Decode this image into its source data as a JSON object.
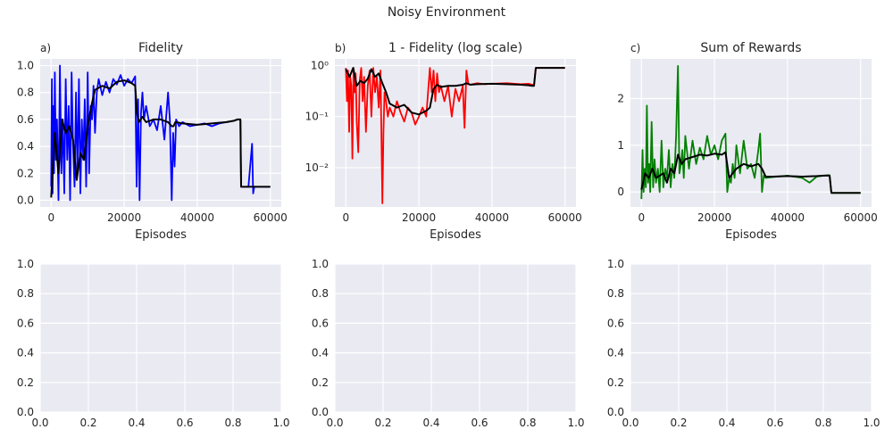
{
  "figure": {
    "suptitle": "Noisy Environment"
  },
  "chart_data": [
    {
      "type": "line",
      "panel_label": "a)",
      "title": "Fidelity",
      "xlabel": "Episodes",
      "ylabel": "",
      "yscale": "linear",
      "xlim": [
        -3000,
        63000
      ],
      "ylim": [
        -0.05,
        1.05
      ],
      "xticks": [
        0,
        20000,
        40000,
        60000
      ],
      "xtick_labels": [
        "0",
        "20000",
        "40000",
        "60000"
      ],
      "yticks": [
        0.0,
        0.2,
        0.4,
        0.6,
        0.8,
        1.0
      ],
      "ytick_labels": [
        "0.0",
        "0.2",
        "0.4",
        "0.6",
        "0.8",
        "1.0"
      ],
      "grid": true,
      "series": [
        {
          "role": "raw",
          "color": "#0000ff",
          "x": [
            0,
            200,
            400,
            600,
            800,
            1000,
            1300,
            1600,
            2000,
            2400,
            2800,
            3200,
            3600,
            4000,
            4400,
            4800,
            5200,
            5600,
            6000,
            6400,
            6800,
            7200,
            7600,
            8000,
            8400,
            8800,
            9200,
            9600,
            10000,
            10400,
            10800,
            11200,
            11600,
            12000,
            12500,
            13000,
            14000,
            15000,
            16000,
            17000,
            18000,
            19000,
            20000,
            21000,
            22000,
            23000,
            23400,
            23800,
            24200,
            24600,
            25000,
            25400,
            26000,
            27000,
            28000,
            29000,
            30000,
            31000,
            32000,
            32500,
            33000,
            33400,
            33800,
            34200,
            35000,
            36000,
            38000,
            40000,
            42000,
            44000,
            46000,
            48000,
            50000,
            51000,
            51800,
            52000,
            53000,
            54000,
            55000,
            55300,
            55600,
            56000,
            58000,
            60000
          ],
          "y": [
            0.1,
            0.9,
            0.05,
            0.7,
            0.2,
            0.95,
            0.3,
            0.6,
            0.0,
            1.0,
            0.2,
            0.6,
            0.05,
            0.9,
            0.3,
            0.7,
            0.0,
            0.95,
            0.4,
            0.1,
            0.8,
            0.2,
            0.9,
            0.05,
            0.6,
            0.3,
            0.75,
            0.1,
            0.95,
            0.2,
            0.7,
            0.6,
            0.85,
            0.5,
            0.8,
            0.9,
            0.78,
            0.88,
            0.8,
            0.9,
            0.86,
            0.93,
            0.85,
            0.9,
            0.87,
            0.92,
            0.1,
            0.75,
            0.0,
            0.65,
            0.8,
            0.6,
            0.7,
            0.55,
            0.6,
            0.52,
            0.7,
            0.45,
            0.8,
            0.6,
            0.0,
            0.5,
            0.25,
            0.6,
            0.55,
            0.58,
            0.55,
            0.56,
            0.57,
            0.55,
            0.57,
            0.58,
            0.59,
            0.6,
            0.6,
            0.1,
            0.1,
            0.1,
            0.42,
            0.05,
            0.1,
            0.1,
            0.1,
            0.1
          ]
        },
        {
          "role": "smoothed",
          "color": "#000000",
          "x": [
            0,
            1000,
            2000,
            3000,
            4000,
            5000,
            6000,
            7000,
            8000,
            9000,
            10000,
            11000,
            12000,
            14000,
            16000,
            18000,
            20000,
            22000,
            23000,
            23500,
            24000,
            25000,
            26000,
            28000,
            30000,
            32000,
            33000,
            33500,
            34000,
            36000,
            40000,
            44000,
            48000,
            50000,
            51000,
            51800,
            52000,
            56000,
            60000
          ],
          "y": [
            0.02,
            0.5,
            0.2,
            0.6,
            0.5,
            0.55,
            0.45,
            0.15,
            0.35,
            0.3,
            0.55,
            0.7,
            0.82,
            0.85,
            0.83,
            0.88,
            0.89,
            0.87,
            0.85,
            0.65,
            0.58,
            0.62,
            0.58,
            0.6,
            0.6,
            0.58,
            0.55,
            0.55,
            0.58,
            0.57,
            0.56,
            0.57,
            0.58,
            0.59,
            0.6,
            0.6,
            0.1,
            0.1,
            0.1
          ]
        }
      ]
    },
    {
      "type": "line",
      "panel_label": "b)",
      "title": "1 - Fidelity (log scale)",
      "xlabel": "Episodes",
      "ylabel": "",
      "yscale": "log",
      "xlim": [
        -3000,
        63000
      ],
      "ylim": [
        0.0017,
        1.35
      ],
      "xticks": [
        0,
        20000,
        40000,
        60000
      ],
      "xtick_labels": [
        "0",
        "20000",
        "40000",
        "60000"
      ],
      "yticks": [
        0.01,
        0.1,
        1
      ],
      "ytick_labels": [
        "10⁻²",
        "10⁻¹",
        "10⁰"
      ],
      "grid": true,
      "series": [
        {
          "role": "raw",
          "color": "#ff0000",
          "x": [
            0,
            300,
            600,
            900,
            1200,
            1500,
            1800,
            2100,
            2400,
            2700,
            3000,
            3400,
            3800,
            4200,
            4600,
            5000,
            5500,
            6000,
            6500,
            7000,
            7500,
            8000,
            8500,
            9000,
            9500,
            10000,
            10300,
            10600,
            11000,
            11500,
            12000,
            13000,
            14000,
            15000,
            16000,
            17000,
            18000,
            19000,
            20000,
            21000,
            22000,
            23000,
            23500,
            24000,
            24500,
            25000,
            25500,
            26000,
            27000,
            28000,
            29000,
            30000,
            31000,
            32000,
            32500,
            33000,
            33500,
            34000,
            36000,
            38000,
            40000,
            44000,
            48000,
            50000,
            51000,
            51500,
            52000,
            56000,
            60000
          ],
          "y": [
            0.9,
            0.2,
            0.8,
            0.05,
            0.6,
            0.4,
            0.015,
            0.9,
            0.3,
            0.7,
            0.08,
            0.02,
            0.5,
            0.9,
            0.2,
            0.6,
            0.05,
            0.4,
            0.8,
            0.1,
            0.9,
            0.3,
            0.6,
            0.15,
            0.8,
            0.002,
            0.05,
            0.3,
            0.2,
            0.1,
            0.15,
            0.1,
            0.2,
            0.12,
            0.08,
            0.15,
            0.12,
            0.07,
            0.1,
            0.15,
            0.1,
            0.9,
            0.3,
            0.8,
            0.2,
            0.7,
            0.3,
            0.4,
            0.2,
            0.4,
            0.1,
            0.35,
            0.2,
            0.4,
            0.06,
            0.8,
            0.45,
            0.42,
            0.45,
            0.43,
            0.44,
            0.45,
            0.43,
            0.44,
            0.42,
            0.42,
            0.9,
            0.9,
            0.9
          ]
        },
        {
          "role": "smoothed",
          "color": "#000000",
          "x": [
            0,
            1000,
            2000,
            3000,
            4000,
            5000,
            6000,
            7000,
            8000,
            9000,
            10000,
            11000,
            12000,
            14000,
            16000,
            18000,
            20000,
            22000,
            23000,
            24000,
            25000,
            26000,
            28000,
            30000,
            32000,
            33000,
            34000,
            36000,
            40000,
            44000,
            48000,
            50000,
            51000,
            51500,
            52000,
            56000,
            60000
          ],
          "y": [
            0.85,
            0.6,
            0.9,
            0.4,
            0.5,
            0.45,
            0.55,
            0.85,
            0.6,
            0.7,
            0.45,
            0.3,
            0.18,
            0.15,
            0.17,
            0.12,
            0.11,
            0.13,
            0.15,
            0.35,
            0.42,
            0.38,
            0.4,
            0.4,
            0.42,
            0.45,
            0.42,
            0.43,
            0.44,
            0.43,
            0.42,
            0.41,
            0.4,
            0.4,
            0.9,
            0.9,
            0.9
          ]
        }
      ]
    },
    {
      "type": "line",
      "panel_label": "c)",
      "title": "Sum of Rewards",
      "xlabel": "Episodes",
      "ylabel": "",
      "yscale": "linear",
      "xlim": [
        -3000,
        63000
      ],
      "ylim": [
        -0.32,
        2.85
      ],
      "xticks": [
        0,
        20000,
        40000,
        60000
      ],
      "xtick_labels": [
        "0",
        "20000",
        "40000",
        "60000"
      ],
      "yticks": [
        0,
        1,
        2
      ],
      "ytick_labels": [
        "0",
        "1",
        "2"
      ],
      "grid": true,
      "series": [
        {
          "role": "raw",
          "color": "#008000",
          "x": [
            0,
            300,
            600,
            900,
            1200,
            1500,
            1800,
            2100,
            2400,
            2800,
            3200,
            3600,
            4000,
            4500,
            5000,
            5500,
            6000,
            6500,
            7000,
            7500,
            8000,
            8500,
            9000,
            9500,
            10000,
            10400,
            10800,
            11200,
            11600,
            12000,
            13000,
            14000,
            15000,
            16000,
            17000,
            18000,
            19000,
            20000,
            21000,
            22000,
            23000,
            23500,
            24000,
            24500,
            25000,
            25500,
            26000,
            27000,
            28000,
            29000,
            30000,
            31000,
            32000,
            32500,
            33000,
            33500,
            34000,
            36000,
            40000,
            44000,
            46000,
            48000,
            50000,
            51000,
            51500,
            52000,
            56000,
            60000
          ],
          "y": [
            -0.15,
            0.9,
            0.0,
            0.5,
            0.1,
            1.85,
            0.2,
            0.6,
            0.0,
            1.5,
            0.1,
            0.7,
            0.2,
            0.5,
            0.0,
            1.1,
            0.1,
            0.5,
            0.3,
            0.9,
            0.1,
            0.6,
            0.3,
            1.2,
            2.7,
            0.4,
            0.6,
            0.9,
            0.3,
            1.2,
            0.5,
            1.1,
            0.6,
            0.95,
            0.7,
            1.2,
            0.8,
            1.0,
            0.7,
            1.1,
            1.25,
            0.0,
            0.3,
            0.2,
            0.6,
            0.3,
            1.0,
            0.4,
            1.1,
            0.5,
            0.6,
            0.3,
            0.9,
            1.25,
            0.0,
            0.35,
            0.3,
            0.32,
            0.35,
            0.3,
            0.2,
            0.33,
            0.35,
            0.36,
            0.36,
            -0.02,
            -0.02,
            -0.02
          ]
        },
        {
          "role": "smoothed",
          "color": "#000000",
          "x": [
            0,
            1000,
            2000,
            3000,
            4000,
            5000,
            6000,
            7000,
            8000,
            9000,
            10000,
            11000,
            12000,
            14000,
            16000,
            18000,
            20000,
            22000,
            23000,
            24000,
            25000,
            26000,
            28000,
            30000,
            32000,
            33000,
            34000,
            36000,
            40000,
            44000,
            48000,
            50000,
            51000,
            51500,
            52000,
            56000,
            60000
          ],
          "y": [
            0.05,
            0.4,
            0.3,
            0.5,
            0.3,
            0.35,
            0.4,
            0.2,
            0.5,
            0.4,
            0.8,
            0.6,
            0.7,
            0.75,
            0.8,
            0.78,
            0.82,
            0.8,
            0.85,
            0.3,
            0.4,
            0.5,
            0.6,
            0.55,
            0.6,
            0.5,
            0.33,
            0.33,
            0.34,
            0.33,
            0.34,
            0.35,
            0.35,
            0.35,
            -0.02,
            -0.02,
            -0.02
          ]
        }
      ]
    },
    {
      "type": "line",
      "panel_label": "",
      "title": "",
      "xlabel": "",
      "ylabel": "",
      "yscale": "linear",
      "xlim": [
        0,
        1
      ],
      "ylim": [
        0,
        1
      ],
      "xticks": [
        0,
        0.2,
        0.4,
        0.6,
        0.8,
        1.0
      ],
      "xtick_labels": [
        "0.0",
        "0.2",
        "0.4",
        "0.6",
        "0.8",
        "1.0"
      ],
      "yticks": [
        0,
        0.2,
        0.4,
        0.6,
        0.8,
        1.0
      ],
      "ytick_labels": [
        "0.0",
        "0.2",
        "0.4",
        "0.6",
        "0.8",
        "1.0"
      ],
      "grid": true,
      "series": []
    },
    {
      "type": "line",
      "panel_label": "",
      "title": "",
      "xlabel": "",
      "ylabel": "",
      "yscale": "linear",
      "xlim": [
        0,
        1
      ],
      "ylim": [
        0,
        1
      ],
      "xticks": [
        0,
        0.2,
        0.4,
        0.6,
        0.8,
        1.0
      ],
      "xtick_labels": [
        "0.0",
        "0.2",
        "0.4",
        "0.6",
        "0.8",
        "1.0"
      ],
      "yticks": [
        0,
        0.2,
        0.4,
        0.6,
        0.8,
        1.0
      ],
      "ytick_labels": [
        "0.0",
        "0.2",
        "0.4",
        "0.6",
        "0.8",
        "1.0"
      ],
      "grid": true,
      "series": []
    },
    {
      "type": "line",
      "panel_label": "",
      "title": "",
      "xlabel": "",
      "ylabel": "",
      "yscale": "linear",
      "xlim": [
        0,
        1
      ],
      "ylim": [
        0,
        1
      ],
      "xticks": [
        0,
        0.2,
        0.4,
        0.6,
        0.8,
        1.0
      ],
      "xtick_labels": [
        "0.0",
        "0.2",
        "0.4",
        "0.6",
        "0.8",
        "1.0"
      ],
      "yticks": [
        0,
        0.2,
        0.4,
        0.6,
        0.8,
        1.0
      ],
      "ytick_labels": [
        "0.0",
        "0.2",
        "0.4",
        "0.6",
        "0.8",
        "1.0"
      ],
      "grid": true,
      "series": []
    }
  ]
}
